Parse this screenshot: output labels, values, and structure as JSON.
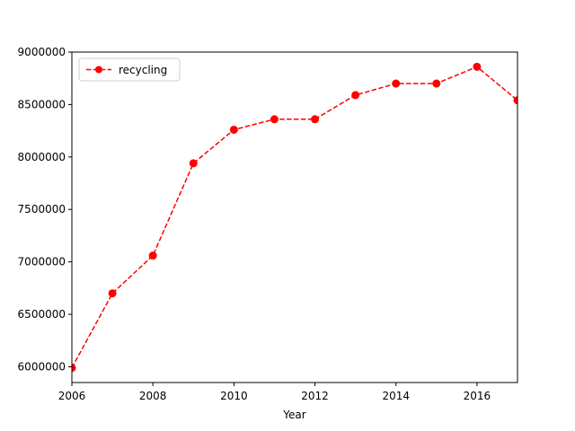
{
  "chart_data": {
    "type": "line",
    "xlabel": "Year",
    "ylabel": "",
    "xlim": [
      2006,
      2017
    ],
    "ylim": [
      5850000,
      9000000
    ],
    "x_ticks": [
      2006,
      2008,
      2010,
      2012,
      2014,
      2016
    ],
    "y_ticks": [
      6000000,
      6500000,
      7000000,
      7500000,
      8000000,
      8500000,
      9000000
    ],
    "grid": false,
    "legend_position": "upper-left",
    "series": [
      {
        "name": "recycling",
        "color": "#ff0000",
        "line_style": "dashed",
        "marker": "circle",
        "x": [
          2006,
          2007,
          2008,
          2009,
          2010,
          2011,
          2012,
          2013,
          2014,
          2015,
          2016,
          2017
        ],
        "y": [
          5990000,
          6700000,
          7060000,
          7940000,
          8260000,
          8360000,
          8360000,
          8590000,
          8700000,
          8700000,
          8860000,
          8540000
        ]
      }
    ]
  }
}
